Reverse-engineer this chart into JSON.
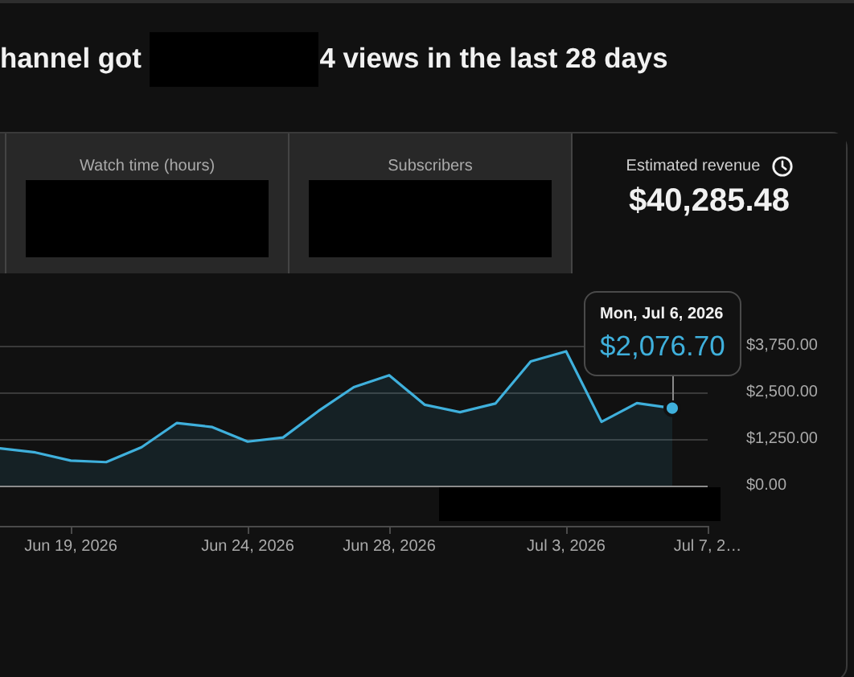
{
  "chart_data": [
    {
      "type": "other",
      "title": "hannel got 4 views in the last 28 days",
      "categories": [
        "Watch time (hours)",
        "Subscribers",
        "Estimated revenue"
      ],
      "value_labels": [
        null,
        null,
        "$40,285.48"
      ]
    },
    {
      "type": "area",
      "x": [
        "2026-06-17",
        "2026-06-18",
        "2026-06-19",
        "2026-06-20",
        "2026-06-21",
        "2026-06-22",
        "2026-06-23",
        "2026-06-24",
        "2026-06-25",
        "2026-06-26",
        "2026-06-27",
        "2026-06-28",
        "2026-06-29",
        "2026-06-30",
        "2026-07-01",
        "2026-07-02",
        "2026-07-03",
        "2026-07-04",
        "2026-07-05",
        "2026-07-06"
      ],
      "values": [
        1000,
        890,
        670,
        630,
        1030,
        1680,
        1570,
        1180,
        1290,
        2000,
        2640,
        2960,
        2170,
        1970,
        2200,
        3330,
        3600,
        1710,
        2210,
        2076.7
      ],
      "color": "#3fb0dc",
      "marker": "none",
      "grid": "y",
      "xlim": [
        "2026-06-17",
        "2026-07-07"
      ],
      "xticks": [
        {
          "value": "2026-06-19",
          "label": "Jun 19, 2026"
        },
        {
          "value": "2026-06-24",
          "label": "Jun 24, 2026"
        },
        {
          "value": "2026-06-28",
          "label": "Jun 28, 2026"
        },
        {
          "value": "2026-07-03",
          "label": "Jul 3, 2026"
        },
        {
          "value": "2026-07-07",
          "label": "Jul 7, 2…"
        }
      ],
      "ylim": [
        0,
        3750
      ],
      "yticks": [
        {
          "value": 0,
          "label": "$0.00"
        },
        {
          "value": 1250,
          "label": "$1,250.00"
        },
        {
          "value": 2500,
          "label": "$2,500.00"
        },
        {
          "value": 3750,
          "label": "$3,750.00"
        }
      ],
      "annotations": [
        "Mon, Jul 6, 2026",
        {
          "text": "$2,076.70",
          "x": "2026-07-06",
          "y": 2076.7
        }
      ]
    }
  ]
}
